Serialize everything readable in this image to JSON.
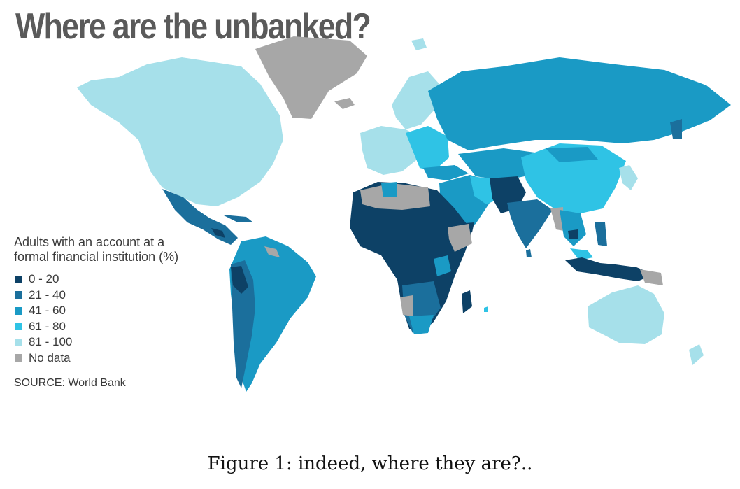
{
  "title": "Where are the unbanked?",
  "legend": {
    "title": "Adults with an account at a formal financial institution (%)",
    "items": [
      {
        "label": "0 - 20",
        "color": "#0d4166"
      },
      {
        "label": "21 - 40",
        "color": "#1b6f9c"
      },
      {
        "label": "41 - 60",
        "color": "#1a9ac5"
      },
      {
        "label": "61 - 80",
        "color": "#2fc3e5"
      },
      {
        "label": "81 - 100",
        "color": "#a6e0ea"
      },
      {
        "label": "No data",
        "color": "#a7a7a7"
      }
    ]
  },
  "source": "SOURCE: World Bank",
  "caption": "Figure 1: indeed, where they are?.."
}
